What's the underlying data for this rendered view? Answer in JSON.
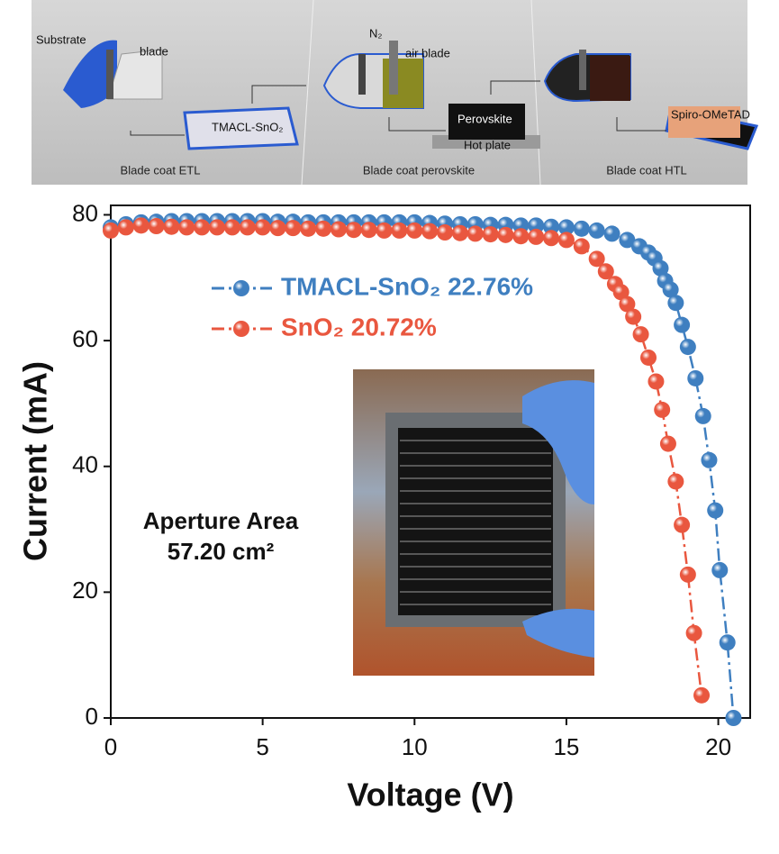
{
  "schematic": {
    "panels": [
      {
        "caption": "Blade coat ETL",
        "labels": [
          "Substrate",
          "blade",
          "TMACL-SnO₂"
        ]
      },
      {
        "caption": "Blade coat perovskite",
        "labels": [
          "N₂",
          "air blade",
          "Perovskite",
          "Hot plate"
        ]
      },
      {
        "caption": "Blade coat HTL",
        "labels": [
          "Spiro-OMeTAD"
        ]
      }
    ]
  },
  "chart_data": {
    "type": "scatter",
    "x_label": "Voltage (V)",
    "y_label": "Current (mA)",
    "xlim": [
      0,
      21.05
    ],
    "ylim": [
      0,
      81.5
    ],
    "xticks": [
      0,
      5,
      10,
      15,
      20
    ],
    "yticks": [
      0,
      20,
      40,
      60,
      80
    ],
    "annotations": [
      "Aperture Area",
      "57.20 cm²"
    ],
    "series": [
      {
        "name": "TMACL-SnO₂ 22.76%",
        "color": "#3f7fc0",
        "x": [
          0,
          0.5,
          1,
          1.5,
          2,
          2.5,
          3,
          3.5,
          4,
          4.5,
          5,
          5.5,
          6,
          6.5,
          7,
          7.5,
          8,
          8.5,
          9,
          9.5,
          10,
          10.5,
          11,
          11.5,
          12,
          12.5,
          13,
          13.5,
          14,
          14.5,
          15,
          15.5,
          16,
          16.5,
          17,
          17.4,
          17.7,
          17.9,
          18.1,
          18.25,
          18.43,
          18.6,
          18.8,
          19.0,
          19.25,
          19.5,
          19.7,
          19.9,
          20.05,
          20.3,
          20.5
        ],
        "values": [
          78,
          78.5,
          78.8,
          78.9,
          79,
          79,
          79,
          79,
          79,
          79,
          79,
          78.9,
          78.9,
          78.8,
          78.8,
          78.8,
          78.8,
          78.8,
          78.8,
          78.8,
          78.8,
          78.7,
          78.6,
          78.5,
          78.5,
          78.4,
          78.4,
          78.3,
          78.3,
          78.1,
          78,
          77.8,
          77.5,
          77,
          76,
          75,
          74,
          73.1,
          71.5,
          69.5,
          68.1,
          66,
          62.5,
          59,
          54,
          48,
          41,
          33,
          23.5,
          12,
          0
        ]
      },
      {
        "name": "SnO₂ 20.72%",
        "color": "#e9573f",
        "x": [
          0,
          0.5,
          1,
          1.5,
          2,
          2.5,
          3,
          3.5,
          4,
          4.5,
          5,
          5.5,
          6,
          6.5,
          7,
          7.5,
          8,
          8.5,
          9,
          9.5,
          10,
          10.5,
          11,
          11.5,
          12,
          12.5,
          13,
          13.5,
          14,
          14.5,
          15,
          15.5,
          16,
          16.3,
          16.6,
          16.8,
          17.0,
          17.2,
          17.45,
          17.7,
          17.95,
          18.15,
          18.35,
          18.6,
          18.8,
          19.0,
          19.2,
          19.45
        ],
        "values": [
          77.5,
          78,
          78.3,
          78.2,
          78.1,
          78,
          78,
          78,
          78,
          78,
          78,
          77.9,
          77.9,
          77.8,
          77.8,
          77.7,
          77.6,
          77.6,
          77.5,
          77.5,
          77.5,
          77.4,
          77.2,
          77.1,
          77,
          76.9,
          76.8,
          76.6,
          76.5,
          76.3,
          76,
          75,
          73,
          71,
          69,
          67.7,
          65.8,
          63.8,
          61,
          57.3,
          53.5,
          49,
          43.6,
          37.6,
          30.7,
          22.8,
          13.5,
          3.6
        ]
      }
    ]
  }
}
